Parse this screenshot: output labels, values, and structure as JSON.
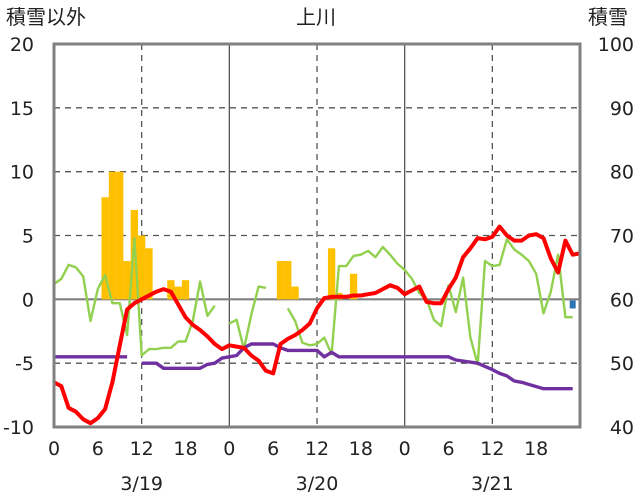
{
  "chart_data": {
    "type": "line",
    "title": "上川",
    "ylabel_left": "積雪以外",
    "ylabel_right": "積雪",
    "ylim_left": [
      -10,
      20
    ],
    "ylim_right": [
      40,
      100
    ],
    "left_ticks": [
      "20",
      "15",
      "10",
      "5",
      "0",
      "-5",
      "-10"
    ],
    "right_ticks": [
      "100",
      "90",
      "80",
      "70",
      "60",
      "50",
      "40"
    ],
    "x_range_hours": [
      0,
      72
    ],
    "x_tick_labels": [
      "0",
      "6",
      "12",
      "18",
      "0",
      "6",
      "12",
      "18",
      "0",
      "6",
      "12",
      "18"
    ],
    "date_labels": [
      "3/19",
      "3/20",
      "3/21"
    ],
    "grid": "dashed",
    "colors": {
      "precipitation": "#FFC000",
      "temperature": "#FF0000",
      "wind": "#92D050",
      "snow_depth": "#7030A0",
      "marker": "#2E75B6",
      "frame": "#808080"
    },
    "series": [
      {
        "key": "precipitation",
        "type": "bar",
        "axis": "left",
        "points": [
          [
            7,
            8
          ],
          [
            8,
            10
          ],
          [
            9,
            10
          ],
          [
            10,
            3
          ],
          [
            11,
            7
          ],
          [
            12,
            5
          ],
          [
            13,
            4
          ],
          [
            16,
            1.5
          ],
          [
            17,
            1
          ],
          [
            18,
            1.5
          ],
          [
            31,
            3
          ],
          [
            32,
            3
          ],
          [
            33,
            1
          ],
          [
            38,
            4
          ],
          [
            39,
            0.5
          ],
          [
            41,
            2
          ]
        ]
      },
      {
        "key": "temperature",
        "type": "line",
        "axis": "left",
        "points": [
          [
            0,
            -6.5
          ],
          [
            1,
            -6.8
          ],
          [
            2,
            -8.5
          ],
          [
            3,
            -8.8
          ],
          [
            4,
            -9.4
          ],
          [
            5,
            -9.7
          ],
          [
            6,
            -9.3
          ],
          [
            7,
            -8.6
          ],
          [
            8,
            -6.5
          ],
          [
            9,
            -3.6
          ],
          [
            10,
            -0.8
          ],
          [
            11,
            -0.3
          ],
          [
            12,
            0
          ],
          [
            13,
            0.3
          ],
          [
            14,
            0.6
          ],
          [
            15,
            0.8
          ],
          [
            16,
            0.6
          ],
          [
            17,
            -0.4
          ],
          [
            18,
            -1.4
          ],
          [
            19,
            -2
          ],
          [
            20,
            -2.4
          ],
          [
            21,
            -2.9
          ],
          [
            22,
            -3.5
          ],
          [
            23,
            -3.9
          ],
          [
            24,
            -3.6
          ],
          [
            25,
            -3.7
          ],
          [
            26,
            -3.8
          ],
          [
            27,
            -4.4
          ],
          [
            28,
            -4.8
          ],
          [
            29,
            -5.6
          ],
          [
            30,
            -5.8
          ],
          [
            31,
            -3.5
          ],
          [
            32,
            -3.1
          ],
          [
            33,
            -2.8
          ],
          [
            34,
            -2.4
          ],
          [
            35,
            -1.9
          ],
          [
            36,
            -0.7
          ],
          [
            37,
            0.1
          ],
          [
            38,
            0.2
          ],
          [
            39,
            0.2
          ],
          [
            40,
            0.2
          ],
          [
            41,
            0.3
          ],
          [
            42,
            0.3
          ],
          [
            43,
            0.4
          ],
          [
            44,
            0.5
          ],
          [
            45,
            0.8
          ],
          [
            46,
            1.1
          ],
          [
            47,
            0.9
          ],
          [
            48,
            0.4
          ],
          [
            49,
            0.7
          ],
          [
            50,
            1
          ],
          [
            51,
            -0.2
          ],
          [
            52,
            -0.3
          ],
          [
            53,
            -0.3
          ],
          [
            54,
            0.8
          ],
          [
            55,
            1.7
          ],
          [
            56,
            3.3
          ],
          [
            57,
            4
          ],
          [
            58,
            4.8
          ],
          [
            59,
            4.7
          ],
          [
            60,
            4.9
          ],
          [
            61,
            5.7
          ],
          [
            62,
            5
          ],
          [
            63,
            4.6
          ],
          [
            64,
            4.6
          ],
          [
            65,
            5
          ],
          [
            66,
            5.1
          ],
          [
            67,
            4.8
          ],
          [
            68,
            3.2
          ],
          [
            69,
            2.1
          ],
          [
            70,
            4.6
          ],
          [
            71,
            3.5
          ],
          [
            72,
            3.6
          ]
        ]
      },
      {
        "key": "wind",
        "type": "line",
        "axis": "left",
        "segments": [
          [
            [
              0,
              1.2
            ],
            [
              1,
              1.6
            ],
            [
              2,
              2.7
            ],
            [
              3,
              2.5
            ],
            [
              4,
              1.8
            ],
            [
              5,
              -1.7
            ],
            [
              6,
              0.8
            ],
            [
              7,
              1.9
            ],
            [
              8,
              -0.3
            ],
            [
              9,
              -0.3
            ],
            [
              10,
              -2.8
            ],
            [
              11,
              4.8
            ],
            [
              12,
              -4.4
            ],
            [
              13,
              -3.9
            ],
            [
              14,
              -3.9
            ],
            [
              15,
              -3.8
            ],
            [
              16,
              -3.8
            ],
            [
              17,
              -3.3
            ],
            [
              18,
              -3.3
            ],
            [
              19,
              -1.7
            ],
            [
              20,
              1.4
            ],
            [
              21,
              -1.3
            ],
            [
              22,
              -0.5
            ]
          ],
          [
            [
              24,
              -1.9
            ],
            [
              25,
              -1.6
            ],
            [
              26,
              -3.9
            ],
            [
              27,
              -1.2
            ],
            [
              28,
              1
            ],
            [
              29,
              0.9
            ]
          ],
          [
            [
              32,
              -0.7
            ],
            [
              33,
              -1.7
            ],
            [
              34,
              -3.4
            ],
            [
              35,
              -3.6
            ],
            [
              36,
              -3.5
            ],
            [
              37,
              -3
            ],
            [
              38,
              -4.3
            ],
            [
              39,
              2.6
            ],
            [
              40,
              2.6
            ],
            [
              41,
              3.4
            ],
            [
              42,
              3.5
            ],
            [
              43,
              3.8
            ],
            [
              44,
              3.3
            ],
            [
              45,
              4.1
            ],
            [
              46,
              3.5
            ],
            [
              47,
              2.8
            ],
            [
              48,
              2.3
            ],
            [
              49,
              1.6
            ],
            [
              50,
              0.5
            ],
            [
              51,
              0
            ],
            [
              52,
              -1.6
            ],
            [
              53,
              -2.1
            ],
            [
              54,
              1.1
            ],
            [
              55,
              -1
            ],
            [
              56,
              1.7
            ],
            [
              57,
              -3
            ],
            [
              58,
              -5.1
            ],
            [
              59,
              3
            ],
            [
              60,
              2.6
            ],
            [
              61,
              2.7
            ],
            [
              62,
              4.7
            ],
            [
              63,
              3.9
            ],
            [
              64,
              3.5
            ],
            [
              65,
              3
            ],
            [
              66,
              2
            ],
            [
              67,
              -1.1
            ],
            [
              68,
              0.6
            ],
            [
              69,
              3.5
            ],
            [
              70,
              -1.4
            ],
            [
              71,
              -1.4
            ]
          ]
        ]
      },
      {
        "key": "snow_depth",
        "type": "line",
        "axis": "right",
        "segments": [
          [
            [
              0,
              51
            ],
            [
              10,
              51
            ]
          ],
          [
            [
              12,
              50
            ],
            [
              14,
              50
            ],
            [
              15,
              49.2
            ],
            [
              20,
              49.2
            ],
            [
              21,
              49.8
            ],
            [
              22,
              50
            ],
            [
              23,
              50.8
            ],
            [
              24,
              51
            ],
            [
              25,
              51.2
            ],
            [
              26,
              52.4
            ],
            [
              27,
              53
            ],
            [
              30,
              53
            ],
            [
              31,
              52.4
            ],
            [
              32,
              52
            ],
            [
              36,
              52
            ],
            [
              37,
              51
            ],
            [
              38,
              51.7
            ],
            [
              39,
              51
            ],
            [
              48,
              51
            ],
            [
              52,
              51
            ],
            [
              54,
              51
            ],
            [
              55,
              50.5
            ],
            [
              58,
              50
            ],
            [
              59,
              49.5
            ],
            [
              60,
              49
            ],
            [
              61,
              48.4
            ],
            [
              62,
              48
            ],
            [
              63,
              47.2
            ],
            [
              64,
              47
            ],
            [
              67,
              46
            ],
            [
              71,
              46
            ]
          ]
        ]
      },
      {
        "key": "marker",
        "type": "point",
        "axis": "left",
        "points": [
          [
            71,
            -0.4
          ]
        ]
      }
    ]
  }
}
